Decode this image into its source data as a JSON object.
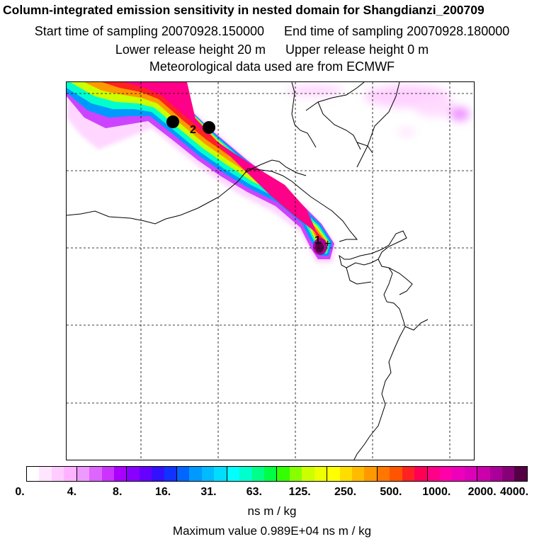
{
  "header": {
    "title": "Column-integrated emission sensitivity in nested domain for Shangdianzi_200709",
    "start_label": "Start time of sampling 20070928.150000",
    "end_label": "End time of sampling 20070928.180000",
    "lower_label": "Lower release height   20 m",
    "upper_label": "Upper release height    0 m",
    "met_label": "Meteorological data used are from ECMWF"
  },
  "map": {
    "markers": [
      "1",
      "2"
    ],
    "receptor_symbol": "+"
  },
  "legend": {
    "ticks": [
      "0.",
      "4.",
      "8.",
      "16.",
      "31.",
      "63.",
      "125.",
      "250.",
      "500.",
      "1000.",
      "2000.",
      "4000."
    ],
    "unit": "ns m / kg",
    "max_value": "Maximum value  0.989E+04 ns m / kg",
    "colors": [
      "#ffffff",
      "#ffe6ff",
      "#ffccff",
      "#ffb3ff",
      "#ee99ff",
      "#dd66ff",
      "#cc33ff",
      "#aa00ff",
      "#8800ff",
      "#6600ff",
      "#3311ff",
      "#1133ff",
      "#0066ff",
      "#0099ff",
      "#00bbff",
      "#00ddff",
      "#00ffff",
      "#00ffcc",
      "#00ff88",
      "#00ff44",
      "#33ff00",
      "#88ff00",
      "#ccff00",
      "#eeff00",
      "#ffff00",
      "#ffdd00",
      "#ffbb00",
      "#ff9900",
      "#ff7700",
      "#ff5500",
      "#ff2222",
      "#ff0055",
      "#ff0088",
      "#ff00aa",
      "#ee00bb",
      "#dd00bb",
      "#cc00aa",
      "#aa0099",
      "#880077",
      "#550044"
    ]
  }
}
